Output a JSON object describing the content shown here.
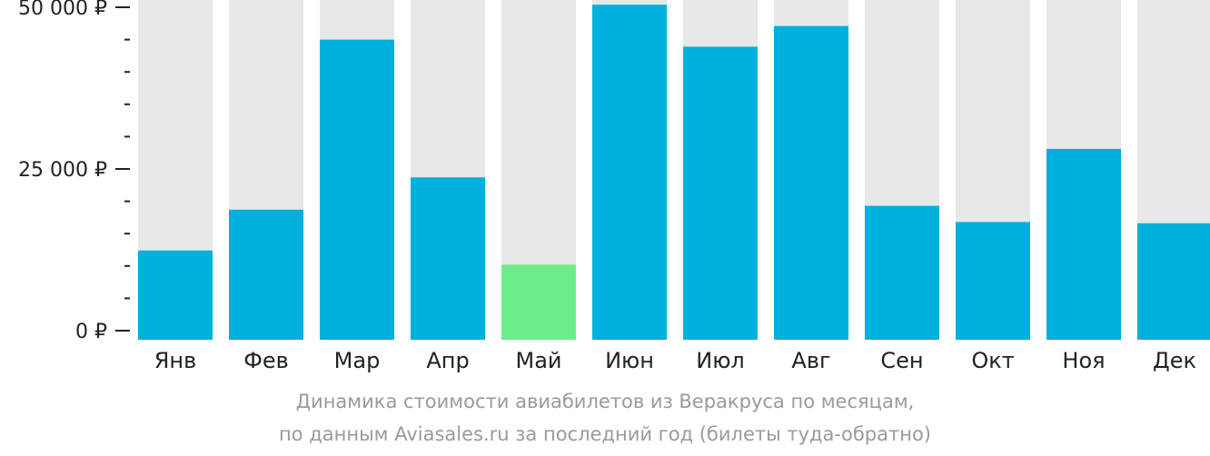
{
  "chart_data": {
    "type": "bar",
    "categories": [
      "Янв",
      "Фев",
      "Мар",
      "Апр",
      "Май",
      "Июн",
      "Июл",
      "Авг",
      "Сен",
      "Окт",
      "Ноя",
      "Дек"
    ],
    "values": [
      12400,
      18700,
      45000,
      23700,
      10200,
      50400,
      43900,
      47100,
      19300,
      16800,
      28100,
      16600
    ],
    "highlight_index": 4,
    "ylim": [
      0,
      51000
    ],
    "yticks": [
      {
        "value": 0,
        "label": "0 ₽"
      },
      {
        "value": 25000,
        "label": "25 000 ₽"
      },
      {
        "value": 50000,
        "label": "50 000 ₽"
      }
    ],
    "minor_tick_step": 5000,
    "colors": {
      "bar": "#00b0dd",
      "highlight": "#6ded8a",
      "background_bar": "#e8e8e8",
      "axis": "#222222"
    },
    "caption": [
      "Динамика стоимости авиабилетов из Веракруса по месяцам,",
      "по данным Aviasales.ru за последний год (билеты туда-обратно)"
    ]
  }
}
